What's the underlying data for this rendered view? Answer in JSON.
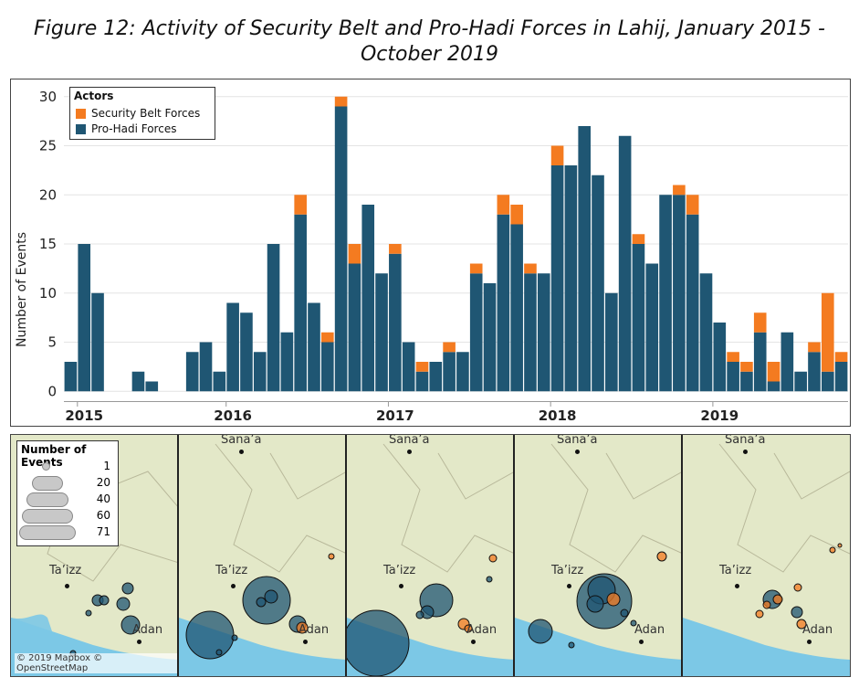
{
  "title_line1": "Figure 12: Activity of Security Belt and Pro-Hadi Forces in Lahij, January 2015 -",
  "title_line2": "October 2019",
  "colors": {
    "pro_hadi": "#1f5673",
    "security_belt": "#f47b20"
  },
  "chart_data": {
    "type": "bar",
    "stacked": true,
    "ylabel": "Number of Events",
    "yticks": [
      0,
      5,
      10,
      15,
      20,
      25,
      30
    ],
    "ylim": [
      -1,
      31
    ],
    "grid": true,
    "legend": {
      "title": "Actors",
      "placement": "top-left",
      "entries": [
        "Security Belt Forces",
        "Pro-Hadi Forces"
      ]
    },
    "year_labels": [
      {
        "label": "2015",
        "month_index": 1
      },
      {
        "label": "2016",
        "month_index": 12
      },
      {
        "label": "2017",
        "month_index": 24
      },
      {
        "label": "2018",
        "month_index": 36
      },
      {
        "label": "2019",
        "month_index": 48
      }
    ],
    "categories": [
      "Jan 2015",
      "Feb 2015",
      "Mar 2015",
      "Apr 2015",
      "May 2015",
      "Jun 2015",
      "Jul 2015",
      "Aug 2015",
      "Sep 2015",
      "Oct 2015",
      "Nov 2015",
      "Dec 2015",
      "Jan 2016",
      "Feb 2016",
      "Mar 2016",
      "Apr 2016",
      "May 2016",
      "Jun 2016",
      "Jul 2016",
      "Aug 2016",
      "Sep 2016",
      "Oct 2016",
      "Nov 2016",
      "Dec 2016",
      "Jan 2017",
      "Feb 2017",
      "Mar 2017",
      "Apr 2017",
      "May 2017",
      "Jun 2017",
      "Jul 2017",
      "Aug 2017",
      "Sep 2017",
      "Oct 2017",
      "Nov 2017",
      "Dec 2017",
      "Jan 2018",
      "Feb 2018",
      "Mar 2018",
      "Apr 2018",
      "May 2018",
      "Jun 2018",
      "Jul 2018",
      "Aug 2018",
      "Sep 2018",
      "Oct 2018",
      "Nov 2018",
      "Dec 2018",
      "Jan 2019",
      "Feb 2019",
      "Mar 2019",
      "Apr 2019",
      "May 2019",
      "Jun 2019",
      "Jul 2019",
      "Aug 2019",
      "Sep 2019",
      "Oct 2019"
    ],
    "series": [
      {
        "name": "Pro-Hadi Forces",
        "values": [
          3,
          15,
          10,
          0,
          0,
          2,
          1,
          0,
          0,
          4,
          5,
          2,
          9,
          8,
          4,
          15,
          6,
          18,
          9,
          5,
          29,
          13,
          19,
          12,
          14,
          5,
          2,
          3,
          4,
          4,
          12,
          11,
          18,
          17,
          12,
          12,
          23,
          23,
          27,
          22,
          10,
          26,
          15,
          13,
          20,
          20,
          18,
          12,
          7,
          3,
          2,
          6,
          1,
          6,
          2,
          4,
          2,
          3
        ]
      },
      {
        "name": "Security Belt Forces",
        "values": [
          0,
          0,
          0,
          0,
          0,
          0,
          0,
          0,
          0,
          0,
          0,
          0,
          0,
          0,
          0,
          0,
          0,
          2,
          0,
          1,
          1,
          2,
          0,
          0,
          1,
          0,
          1,
          0,
          1,
          0,
          1,
          0,
          2,
          2,
          1,
          0,
          2,
          0,
          0,
          0,
          0,
          0,
          1,
          0,
          0,
          1,
          2,
          0,
          0,
          1,
          1,
          2,
          2,
          0,
          0,
          1,
          8,
          1
        ]
      }
    ]
  },
  "maps": {
    "size_legend": {
      "title": "Number of Events",
      "values": [
        "1",
        "20",
        "40",
        "60",
        "71"
      ]
    },
    "city_labels": {
      "sanaa": "Sana’a",
      "taizz": "Ta’izz",
      "adan": "Adan"
    },
    "credit": "© 2019 Mapbox © OpenStreetMap"
  }
}
